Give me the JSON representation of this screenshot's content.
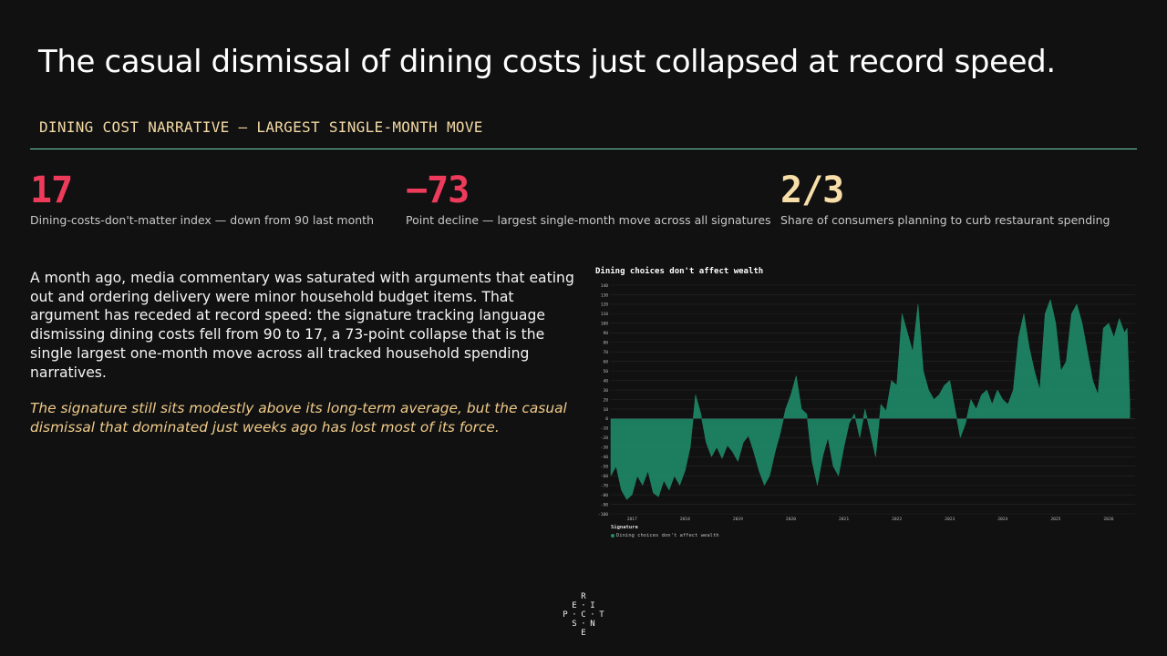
{
  "headline": "The casual dismissal of dining costs just collapsed at record speed.",
  "kicker": "DINING COST NARRATIVE — LARGEST SINGLE-MONTH MOVE",
  "colors": {
    "background": "#111111",
    "rule": "#6fd1b0",
    "stat_red": "#ee3b5b",
    "stat_cream": "#f8dfa9",
    "italic_text": "#f0cb8a",
    "series": "#1f8a68"
  },
  "stats": [
    {
      "value": "17",
      "caption": "Dining-costs-don't-matter index — down from 90 last month",
      "color": "#ee3b5b"
    },
    {
      "value": "−73",
      "caption": "Point decline — largest single-month move across all signatures",
      "color": "#ee3b5b"
    },
    {
      "value": "2/3",
      "caption": "Share of consumers planning to curb restaurant spending",
      "color": "#f8dfa9"
    }
  ],
  "body": {
    "paragraph": "A month ago, media commentary was saturated with arguments that eating out and ordering delivery were minor household budget items. That argument has receded at record speed: the signature tracking language dismissing dining costs fell from 90 to 17, a 73-point collapse that is the single largest one-month move across all tracked household spending narratives.",
    "italic": "The signature still sits modestly above its long-term average, but the casual dismissal that dominated just weeks ago has lost most of its force."
  },
  "logo": {
    "letters": [
      "R",
      "E",
      "I",
      "P",
      "C",
      "T",
      "S",
      "N",
      "E"
    ]
  },
  "chart_data": {
    "type": "area",
    "title": "Dining choices don't affect wealth",
    "xlabel": "",
    "ylabel": "",
    "ylim": [
      -100,
      140
    ],
    "yticks": [
      140,
      130,
      120,
      110,
      100,
      90,
      80,
      70,
      60,
      50,
      40,
      30,
      20,
      10,
      0,
      -10,
      -20,
      -30,
      -40,
      -50,
      -60,
      -70,
      -80,
      -90,
      -100
    ],
    "xlim": [
      2016.6,
      2026.5
    ],
    "xticks": [
      "2017",
      "2018",
      "2019",
      "2020",
      "2021",
      "2022",
      "2023",
      "2024",
      "2025",
      "2026"
    ],
    "grid": true,
    "legend_title": "Signature",
    "legend_position": "bottom-left",
    "series": [
      {
        "name": "Dining choices don't affect wealth",
        "color": "#1f8a68",
        "x": [
          2016.6,
          2016.7,
          2016.8,
          2016.9,
          2017.0,
          2017.1,
          2017.2,
          2017.3,
          2017.4,
          2017.5,
          2017.6,
          2017.7,
          2017.8,
          2017.9,
          2018.0,
          2018.1,
          2018.2,
          2018.3,
          2018.4,
          2018.5,
          2018.6,
          2018.7,
          2018.8,
          2018.9,
          2019.0,
          2019.1,
          2019.2,
          2019.3,
          2019.4,
          2019.5,
          2019.6,
          2019.7,
          2019.8,
          2019.9,
          2020.0,
          2020.1,
          2020.2,
          2020.3,
          2020.4,
          2020.5,
          2020.6,
          2020.7,
          2020.8,
          2020.9,
          2021.0,
          2021.1,
          2021.2,
          2021.3,
          2021.4,
          2021.5,
          2021.6,
          2021.7,
          2021.8,
          2021.9,
          2022.0,
          2022.1,
          2022.2,
          2022.3,
          2022.4,
          2022.5,
          2022.6,
          2022.7,
          2022.8,
          2022.9,
          2023.0,
          2023.1,
          2023.2,
          2023.3,
          2023.4,
          2023.5,
          2023.6,
          2023.7,
          2023.8,
          2023.9,
          2024.0,
          2024.1,
          2024.2,
          2024.3,
          2024.4,
          2024.5,
          2024.6,
          2024.7,
          2024.8,
          2024.9,
          2025.0,
          2025.1,
          2025.2,
          2025.3,
          2025.4,
          2025.5,
          2025.6,
          2025.7,
          2025.8,
          2025.9,
          2026.0,
          2026.1,
          2026.2,
          2026.3,
          2026.35,
          2026.4
        ],
        "values": [
          -60,
          -50,
          -75,
          -85,
          -80,
          -60,
          -70,
          -55,
          -78,
          -82,
          -65,
          -75,
          -60,
          -70,
          -55,
          -30,
          25,
          5,
          -25,
          -40,
          -30,
          -42,
          -28,
          -35,
          -45,
          -25,
          -18,
          -35,
          -55,
          -70,
          -60,
          -35,
          -15,
          10,
          25,
          45,
          10,
          5,
          -45,
          -70,
          -40,
          -20,
          -50,
          -60,
          -30,
          -5,
          5,
          -20,
          10,
          -15,
          -40,
          15,
          8,
          40,
          35,
          110,
          90,
          70,
          120,
          50,
          30,
          20,
          25,
          35,
          40,
          10,
          -20,
          -5,
          20,
          10,
          25,
          30,
          15,
          30,
          20,
          15,
          30,
          85,
          110,
          75,
          50,
          30,
          110,
          125,
          100,
          50,
          60,
          110,
          120,
          100,
          70,
          40,
          25,
          95,
          100,
          85,
          105,
          90,
          95,
          17
        ]
      }
    ]
  }
}
